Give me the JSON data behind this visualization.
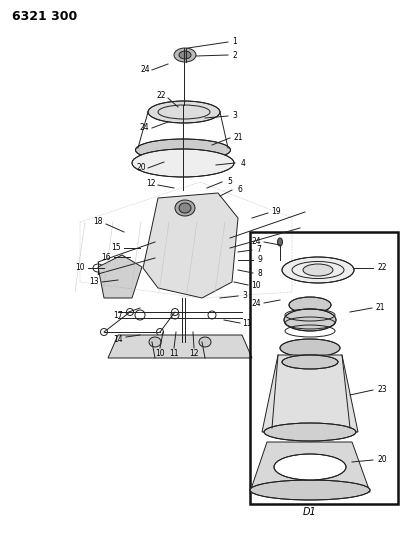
{
  "title": "6321 300",
  "background_color": "#ffffff",
  "text_color": "#000000",
  "subtitle": "D1",
  "fig_width": 4.08,
  "fig_height": 5.33,
  "dpi": 100
}
